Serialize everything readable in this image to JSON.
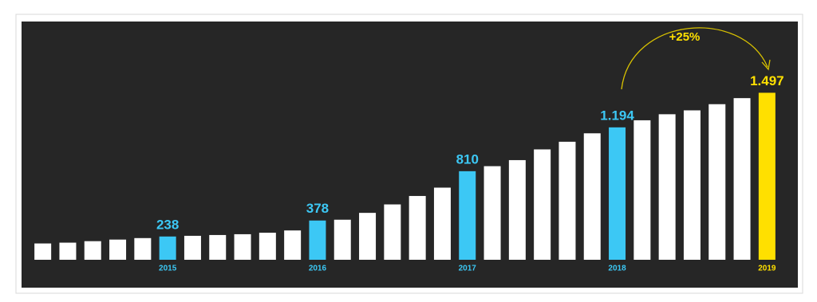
{
  "chart_data": {
    "type": "bar",
    "categories": [
      null,
      null,
      null,
      null,
      null,
      "2015",
      null,
      null,
      null,
      null,
      null,
      "2016",
      null,
      null,
      null,
      null,
      null,
      "2017",
      null,
      null,
      null,
      null,
      null,
      "2018",
      null,
      null,
      null,
      null,
      null,
      "2019"
    ],
    "values": [
      177,
      184,
      197,
      211,
      224,
      238,
      244,
      251,
      258,
      271,
      291,
      378,
      385,
      445,
      519,
      593,
      666,
      810,
      854,
      907,
      1001,
      1068,
      1142,
      1194,
      1256,
      1309,
      1343,
      1397,
      1450,
      1497
    ],
    "value_labels": [
      null,
      null,
      null,
      null,
      null,
      "238",
      null,
      null,
      null,
      null,
      null,
      "378",
      null,
      null,
      null,
      null,
      null,
      "810",
      null,
      null,
      null,
      null,
      null,
      "1.194",
      null,
      null,
      null,
      null,
      null,
      "1.497"
    ],
    "colors": [
      "#ffffff",
      "#ffffff",
      "#ffffff",
      "#ffffff",
      "#ffffff",
      "#3cc8f5",
      "#ffffff",
      "#ffffff",
      "#ffffff",
      "#ffffff",
      "#ffffff",
      "#3cc8f5",
      "#ffffff",
      "#ffffff",
      "#ffffff",
      "#ffffff",
      "#ffffff",
      "#3cc8f5",
      "#ffffff",
      "#ffffff",
      "#ffffff",
      "#ffffff",
      "#ffffff",
      "#3cc8f5",
      "#ffffff",
      "#ffffff",
      "#ffffff",
      "#ffffff",
      "#ffffff",
      "#ffe000"
    ],
    "ylim": [
      90,
      1500
    ],
    "annotation": "+25%"
  }
}
